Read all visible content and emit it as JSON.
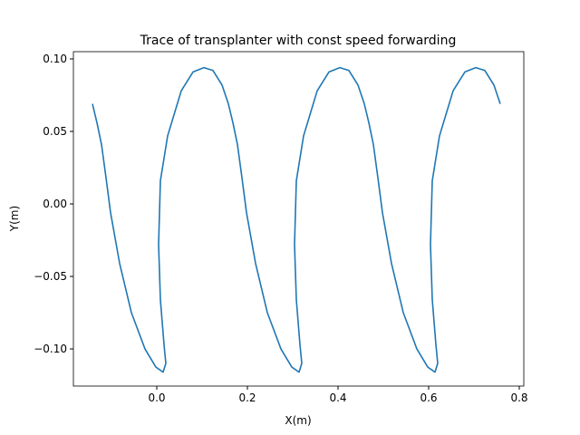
{
  "chart_data": {
    "type": "line",
    "title": "Trace of transplanter with const speed forwarding",
    "xlabel": "X(m)",
    "ylabel": "Y(m)",
    "color": "#1f77b4",
    "x": [
      -0.142,
      -0.132,
      -0.122,
      -0.112,
      -0.102,
      -0.082,
      -0.056,
      -0.026,
      -0.002,
      0.014,
      0.02,
      0.016,
      0.008,
      0.004,
      0.008,
      0.024,
      0.054,
      0.08,
      0.104,
      0.124,
      0.144,
      0.158,
      0.168,
      0.178,
      0.188,
      0.198,
      0.218,
      0.244,
      0.274,
      0.298,
      0.314,
      0.32,
      0.316,
      0.308,
      0.304,
      0.308,
      0.324,
      0.354,
      0.38,
      0.404,
      0.424,
      0.444,
      0.458,
      0.468,
      0.478,
      0.488,
      0.498,
      0.518,
      0.544,
      0.574,
      0.598,
      0.614,
      0.62,
      0.616,
      0.608,
      0.604,
      0.608,
      0.624,
      0.654,
      0.68,
      0.704,
      0.724,
      0.744,
      0.758
    ],
    "values": [
      0.069,
      0.056,
      0.041,
      0.018,
      -0.006,
      -0.041,
      -0.075,
      -0.1,
      -0.1125,
      -0.116,
      -0.11,
      -0.097,
      -0.066,
      -0.028,
      0.016,
      0.047,
      0.078,
      0.091,
      0.094,
      0.092,
      0.082,
      0.069,
      0.056,
      0.041,
      0.018,
      -0.006,
      -0.041,
      -0.075,
      -0.1,
      -0.1125,
      -0.116,
      -0.11,
      -0.097,
      -0.066,
      -0.028,
      0.016,
      0.047,
      0.078,
      0.091,
      0.094,
      0.092,
      0.082,
      0.069,
      0.056,
      0.041,
      0.018,
      -0.006,
      -0.041,
      -0.075,
      -0.1,
      -0.1125,
      -0.116,
      -0.11,
      -0.097,
      -0.066,
      -0.028,
      0.016,
      0.047,
      0.078,
      0.091,
      0.094,
      0.092,
      0.082,
      0.069
    ],
    "xlim": [
      -0.184,
      0.81
    ],
    "xticks": [
      {
        "value": 0,
        "label": "0.0"
      },
      {
        "value": 0.2,
        "label": "0.2"
      },
      {
        "value": 0.4,
        "label": "0.4"
      },
      {
        "value": 0.6,
        "label": "0.6"
      },
      {
        "value": 0.8,
        "label": "0.8"
      }
    ],
    "ylim": [
      -0.1256,
      0.105
    ],
    "yticks": [
      {
        "value": -0.1,
        "label": "−0.10"
      },
      {
        "value": -0.05,
        "label": "−0.05"
      },
      {
        "value": 0,
        "label": "0.00"
      },
      {
        "value": 0.05,
        "label": "0.05"
      },
      {
        "value": 0.1,
        "label": "0.10"
      }
    ]
  }
}
